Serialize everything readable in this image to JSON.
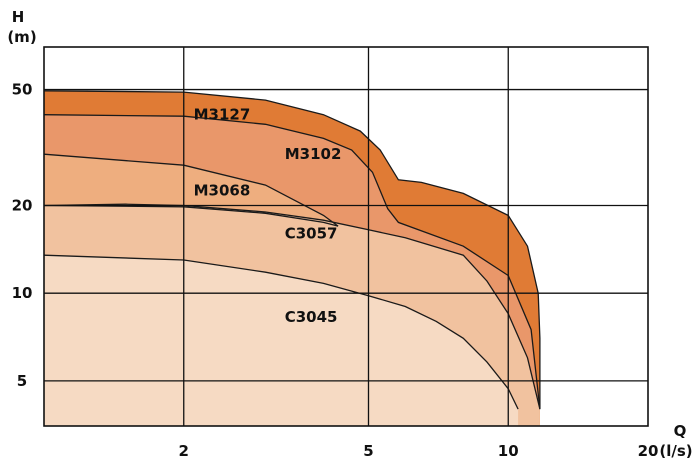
{
  "chart_data": {
    "type": "area",
    "title": "",
    "x_axis": {
      "symbol": "Q",
      "unit": "(l/s)",
      "scale": "log",
      "range": [
        1,
        20
      ],
      "ticks": [
        2,
        5,
        10,
        20
      ],
      "tick_labels": [
        "2",
        "5",
        "10",
        "20"
      ]
    },
    "y_axis": {
      "symbol": "H",
      "unit": "(m)",
      "scale": "log",
      "range": [
        3.5,
        70
      ],
      "ticks": [
        5,
        10,
        20,
        50
      ],
      "tick_labels": [
        "5",
        "10",
        "20",
        "50"
      ]
    },
    "grid": true,
    "series": [
      {
        "name": "M3127",
        "color": "#E07B35",
        "points": [
          [
            1,
            49.5
          ],
          [
            2,
            49
          ],
          [
            3,
            46
          ],
          [
            4,
            41
          ],
          [
            4.8,
            36
          ],
          [
            5.3,
            31
          ],
          [
            5.8,
            24.5
          ],
          [
            6.5,
            24
          ],
          [
            8,
            22
          ],
          [
            10,
            18.5
          ],
          [
            11,
            14.5
          ],
          [
            11.6,
            10
          ],
          [
            11.7,
            7
          ],
          [
            11.7,
            4
          ]
        ]
      },
      {
        "name": "M3102",
        "color": "#E9976A",
        "points": [
          [
            1,
            41
          ],
          [
            2,
            40.5
          ],
          [
            3,
            38
          ],
          [
            4,
            34
          ],
          [
            4.6,
            31
          ],
          [
            5.1,
            26
          ],
          [
            5.5,
            19.5
          ],
          [
            5.8,
            17.5
          ],
          [
            8,
            14.5
          ],
          [
            10,
            11.5
          ],
          [
            11.2,
            7.5
          ],
          [
            11.7,
            4
          ]
        ]
      },
      {
        "name": "M3068",
        "color": "#EEAE7F",
        "points": [
          [
            1,
            30
          ],
          [
            2,
            27.5
          ],
          [
            3,
            23.5
          ],
          [
            4,
            18.5
          ],
          [
            4.3,
            17
          ]
        ]
      },
      {
        "name": "C3057",
        "color": "#F1C29F",
        "points": [
          [
            1,
            20
          ],
          [
            1.5,
            20.2
          ],
          [
            2,
            20
          ],
          [
            3,
            19
          ],
          [
            4,
            17.8
          ],
          [
            5,
            16.5
          ],
          [
            6,
            15.5
          ],
          [
            8,
            13.5
          ],
          [
            9,
            11
          ],
          [
            10,
            8.5
          ],
          [
            11,
            6
          ],
          [
            11.7,
            4
          ]
        ]
      },
      {
        "name": "C3045",
        "color": "#F6DAC3",
        "points": [
          [
            1,
            13.5
          ],
          [
            2,
            13
          ],
          [
            3,
            11.8
          ],
          [
            4,
            10.8
          ],
          [
            5,
            9.8
          ],
          [
            6,
            9
          ],
          [
            7,
            8
          ],
          [
            8,
            7
          ],
          [
            9,
            5.8
          ],
          [
            10,
            4.7
          ],
          [
            10.5,
            4
          ]
        ]
      }
    ],
    "boundary_curves": [
      {
        "name": "M3068-lower",
        "points": [
          [
            1,
            20
          ],
          [
            2,
            19.8
          ],
          [
            3,
            18.8
          ],
          [
            4,
            17.5
          ],
          [
            4.3,
            17
          ]
        ]
      }
    ],
    "labels": [
      {
        "text": "M3127",
        "q": 2.1,
        "h": 41
      },
      {
        "text": "M3102",
        "q": 3.3,
        "h": 30
      },
      {
        "text": "M3068",
        "q": 2.1,
        "h": 22.5
      },
      {
        "text": "C3057",
        "q": 3.3,
        "h": 16
      },
      {
        "text": "C3045",
        "q": 3.3,
        "h": 8.3
      }
    ]
  }
}
